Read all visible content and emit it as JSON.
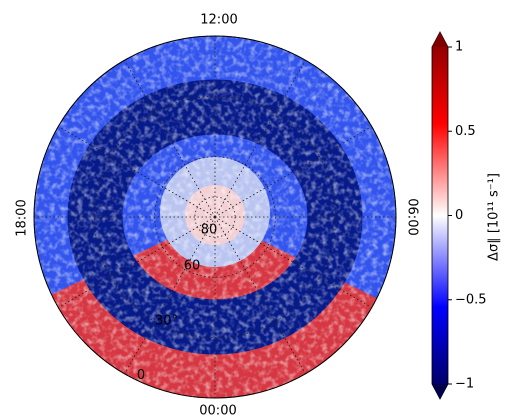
{
  "chart_data": {
    "type": "polar-heatmap",
    "angle_labels": [
      "12:00",
      "06:00",
      "00:00",
      "18:00"
    ],
    "rlim": [
      90,
      0
    ],
    "rticks": [
      0,
      {
        "value": 30,
        "label": "30°"
      },
      60,
      80
    ],
    "colorbar": {
      "label": "Δσ∥ [10¹¹ s⁻¹]",
      "clim": [
        -1,
        1
      ],
      "ticks": [
        1,
        0.5,
        0,
        {
          "value": -0.5,
          "label": "−0.5"
        },
        {
          "value": -1,
          "label": "−1"
        }
      ],
      "colors": [
        "#00004c",
        "#0000ff",
        "#ffffff",
        "#ff0000",
        "#7f0000"
      ]
    }
  }
}
